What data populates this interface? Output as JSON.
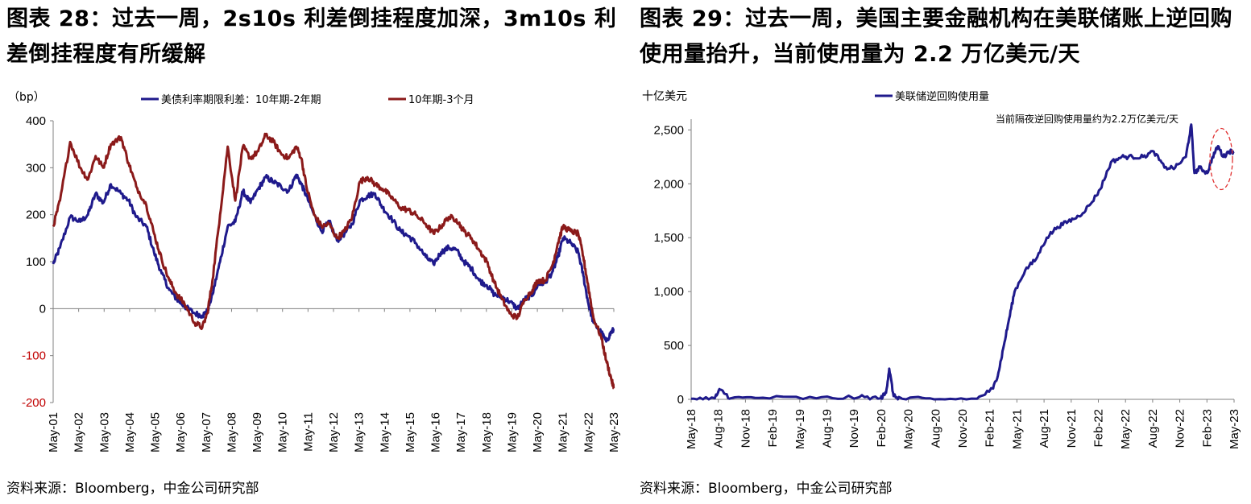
{
  "left_panel": {
    "title": "图表 28：过去一周，2s10s 利差倒挂程度加深，3m10s 利差倒挂程度有所缓解",
    "source": "资料来源：Bloomberg，中金公司研究部"
  },
  "right_panel": {
    "title": "图表 29：过去一周，美国主要金融机构在美联储账上逆回购使用量抬升，当前使用量为 2.2 万亿美元/天",
    "source": "资料来源：Bloomberg，中金公司研究部"
  },
  "colors": {
    "navy": "#1f1a8c",
    "maroon": "#8b1a1a",
    "red_tick": "#c00000",
    "annot_circle": "#e03030"
  },
  "chart_data": [
    {
      "type": "line",
      "unit_label": "（bp）",
      "ylim": [
        -200,
        400
      ],
      "y_ticks": [
        400,
        300,
        200,
        100,
        0,
        -100,
        -200
      ],
      "y_tick_labels": [
        "400",
        "300",
        "200",
        "100",
        "0",
        "-100",
        "-200"
      ],
      "xlim": [
        2001.33,
        2023.4
      ],
      "x_tick_labels": [
        "May-01",
        "May-02",
        "May-03",
        "May-04",
        "May-05",
        "May-06",
        "May-07",
        "May-08",
        "May-09",
        "May-10",
        "May-11",
        "May-12",
        "May-13",
        "May-14",
        "May-15",
        "May-16",
        "May-17",
        "May-18",
        "May-19",
        "May-20",
        "May-21",
        "May-22",
        "May-23"
      ],
      "legend_position": "top",
      "grid": false,
      "series": [
        {
          "name": "美债利率期限利差：10年期-2年期",
          "color": "#1f1a8c",
          "x": [
            2001.33,
            2001.6,
            2002.0,
            2002.4,
            2002.7,
            2003.0,
            2003.3,
            2003.6,
            2004.0,
            2004.3,
            2004.6,
            2005.0,
            2005.3,
            2005.6,
            2005.9,
            2006.2,
            2006.5,
            2006.9,
            2007.2,
            2007.4,
            2007.6,
            2007.9,
            2008.2,
            2008.5,
            2008.8,
            2009.1,
            2009.4,
            2009.7,
            2010.0,
            2010.3,
            2010.6,
            2010.9,
            2011.1,
            2011.3,
            2011.6,
            2011.9,
            2012.2,
            2012.5,
            2012.8,
            2013.1,
            2013.4,
            2013.7,
            2014.0,
            2014.3,
            2014.6,
            2015.0,
            2015.3,
            2015.6,
            2016.0,
            2016.3,
            2016.6,
            2016.9,
            2017.2,
            2017.5,
            2017.8,
            2018.1,
            2018.4,
            2018.7,
            2019.0,
            2019.3,
            2019.6,
            2019.9,
            2020.2,
            2020.4,
            2020.7,
            2021.0,
            2021.2,
            2021.4,
            2021.7,
            2022.0,
            2022.2,
            2022.4,
            2022.6,
            2022.9,
            2023.1,
            2023.3,
            2023.4
          ],
          "y": [
            95,
            130,
            195,
            185,
            200,
            245,
            225,
            265,
            245,
            230,
            195,
            175,
            120,
            75,
            40,
            20,
            5,
            -10,
            -15,
            -5,
            30,
            100,
            175,
            185,
            250,
            225,
            255,
            280,
            270,
            260,
            250,
            285,
            265,
            240,
            200,
            165,
            185,
            145,
            160,
            180,
            230,
            240,
            245,
            215,
            195,
            165,
            155,
            140,
            110,
            95,
            120,
            130,
            125,
            100,
            85,
            60,
            50,
            30,
            25,
            15,
            0,
            20,
            30,
            50,
            55,
            80,
            110,
            150,
            140,
            120,
            70,
            10,
            -30,
            -50,
            -70,
            -50,
            -45
          ]
        },
        {
          "name": "10年期-3个月",
          "color": "#8b1a1a",
          "x": [
            2001.33,
            2001.6,
            2002.0,
            2002.4,
            2002.7,
            2003.0,
            2003.3,
            2003.6,
            2004.0,
            2004.3,
            2004.6,
            2005.0,
            2005.3,
            2005.6,
            2005.9,
            2006.2,
            2006.5,
            2006.9,
            2007.2,
            2007.4,
            2007.6,
            2007.9,
            2008.2,
            2008.5,
            2008.8,
            2009.1,
            2009.4,
            2009.7,
            2010.0,
            2010.3,
            2010.6,
            2010.9,
            2011.1,
            2011.3,
            2011.6,
            2011.9,
            2012.2,
            2012.5,
            2012.8,
            2013.1,
            2013.4,
            2013.7,
            2014.0,
            2014.3,
            2014.6,
            2015.0,
            2015.3,
            2015.6,
            2016.0,
            2016.3,
            2016.6,
            2016.9,
            2017.2,
            2017.5,
            2017.8,
            2018.1,
            2018.4,
            2018.7,
            2019.0,
            2019.3,
            2019.6,
            2019.9,
            2020.2,
            2020.4,
            2020.7,
            2021.0,
            2021.2,
            2021.4,
            2021.7,
            2022.0,
            2022.2,
            2022.4,
            2022.6,
            2022.9,
            2023.1,
            2023.3,
            2023.4
          ],
          "y": [
            175,
            230,
            355,
            300,
            275,
            325,
            300,
            350,
            365,
            310,
            260,
            220,
            160,
            105,
            60,
            30,
            10,
            -30,
            -40,
            -10,
            60,
            200,
            345,
            230,
            345,
            320,
            335,
            370,
            355,
            330,
            320,
            345,
            320,
            260,
            200,
            175,
            180,
            150,
            165,
            195,
            270,
            280,
            265,
            255,
            240,
            215,
            210,
            200,
            180,
            160,
            175,
            195,
            190,
            165,
            150,
            125,
            100,
            55,
            20,
            -10,
            -20,
            20,
            40,
            60,
            60,
            95,
            140,
            175,
            165,
            160,
            110,
            45,
            -20,
            -60,
            -110,
            -150,
            -170
          ]
        }
      ]
    },
    {
      "type": "line",
      "unit_label": "十亿美元",
      "ylim": [
        0,
        2600
      ],
      "y_ticks": [
        2500,
        2000,
        1500,
        1000,
        500,
        0
      ],
      "y_tick_labels": [
        "2,500",
        "2,000",
        "1,500",
        "1,000",
        "500",
        "0"
      ],
      "xlim": [
        2018.33,
        2023.4
      ],
      "x_tick_labels": [
        "May-18",
        "Aug-18",
        "Nov-18",
        "Feb-19",
        "May-19",
        "Aug-19",
        "Nov-19",
        "Feb-20",
        "May-20",
        "Aug-20",
        "Nov-20",
        "Feb-21",
        "May-21",
        "Aug-21",
        "Nov-21",
        "Feb-22",
        "May-22",
        "Aug-22",
        "Nov-22",
        "Feb-23",
        "May-23"
      ],
      "legend_position": "top",
      "grid": false,
      "annotation": "当前隔夜逆回购使用量约为2.2万亿美元/天",
      "series": [
        {
          "name": "美联储逆回购使用量",
          "color": "#1f1a8c",
          "x": [
            2018.33,
            2018.55,
            2018.6,
            2018.7,
            2019.0,
            2019.5,
            2019.9,
            2020.1,
            2020.15,
            2020.18,
            2020.22,
            2020.3,
            2020.6,
            2021.0,
            2021.15,
            2021.2,
            2021.25,
            2021.3,
            2021.35,
            2021.45,
            2021.55,
            2021.65,
            2021.75,
            2021.85,
            2021.95,
            2022.05,
            2022.15,
            2022.25,
            2022.35,
            2022.45,
            2022.55,
            2022.65,
            2022.75,
            2022.85,
            2022.95,
            2023.0,
            2023.03,
            2023.08,
            2023.15,
            2023.2,
            2023.25,
            2023.3,
            2023.35,
            2023.4
          ],
          "y": [
            5,
            10,
            90,
            10,
            15,
            10,
            20,
            10,
            60,
            285,
            30,
            5,
            0,
            5,
            100,
            250,
            500,
            750,
            1000,
            1200,
            1300,
            1500,
            1600,
            1650,
            1700,
            1800,
            1950,
            2200,
            2250,
            2250,
            2250,
            2300,
            2150,
            2150,
            2250,
            2550,
            2100,
            2150,
            2100,
            2250,
            2350,
            2250,
            2300,
            2300
          ]
        }
      ]
    }
  ]
}
